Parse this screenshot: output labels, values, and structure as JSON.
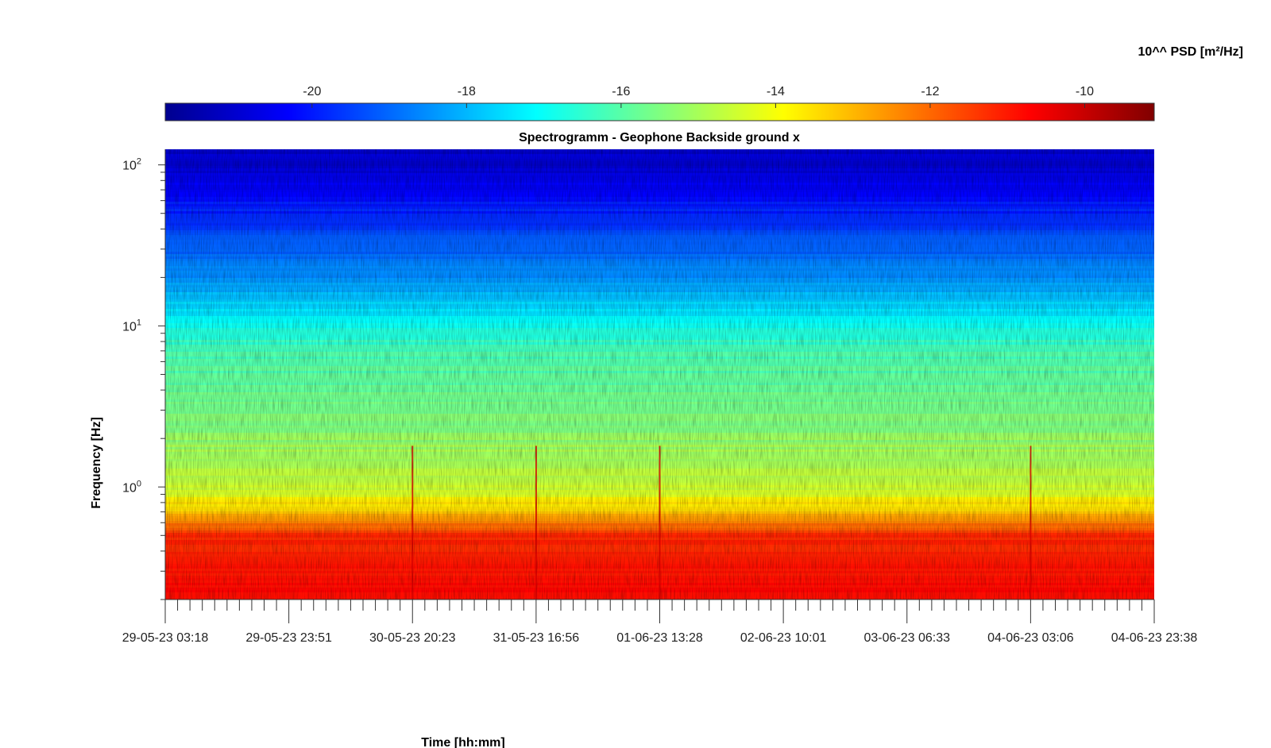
{
  "chart_data": {
    "type": "heatmap",
    "title": "Spectrogramm - Geophone Backside ground x",
    "xlabel": "Time [hh:mm]",
    "ylabel": "Frequency [Hz]",
    "colorbar_label": "10^^ PSD [m²/Hz]",
    "colormap": "jet",
    "colorbar_ticks": [
      "-20",
      "-18",
      "-16",
      "-14",
      "-12",
      "-10"
    ],
    "colorbar_range": [
      -21.9,
      -9.1
    ],
    "x_tick_labels": [
      "29-05-23 03:18",
      "29-05-23 23:51",
      "30-05-23 20:23",
      "31-05-23 16:56",
      "01-06-23 13:28",
      "02-06-23 10:01",
      "03-06-23 06:33",
      "04-06-23 03:06",
      "04-06-23 23:38"
    ],
    "xlim": [
      "29-05-23 03:18",
      "04-06-23 23:38"
    ],
    "y_scale": "log",
    "y_ticks": [
      {
        "base": "10",
        "exp": "0",
        "value": 1
      },
      {
        "base": "10",
        "exp": "1",
        "value": 10
      },
      {
        "base": "10",
        "exp": "2",
        "value": 100
      }
    ],
    "ylim": [
      0.2,
      125
    ],
    "psd_profile_by_frequency": [
      {
        "hz": 0.2,
        "log_psd": -10.8
      },
      {
        "hz": 0.5,
        "log_psd": -11.3
      },
      {
        "hz": 0.7,
        "log_psd": -13.2
      },
      {
        "hz": 1.0,
        "log_psd": -14.6
      },
      {
        "hz": 3.0,
        "log_psd": -15.6
      },
      {
        "hz": 7.0,
        "log_psd": -16.2
      },
      {
        "hz": 20,
        "log_psd": -18.5
      },
      {
        "hz": 100,
        "log_psd": -20.9
      }
    ],
    "noise_events": [
      "30-05-23 20:23",
      "31-05-23 16:56",
      "01-06-23 13:28",
      "04-06-23 03:06"
    ],
    "grid": false
  }
}
